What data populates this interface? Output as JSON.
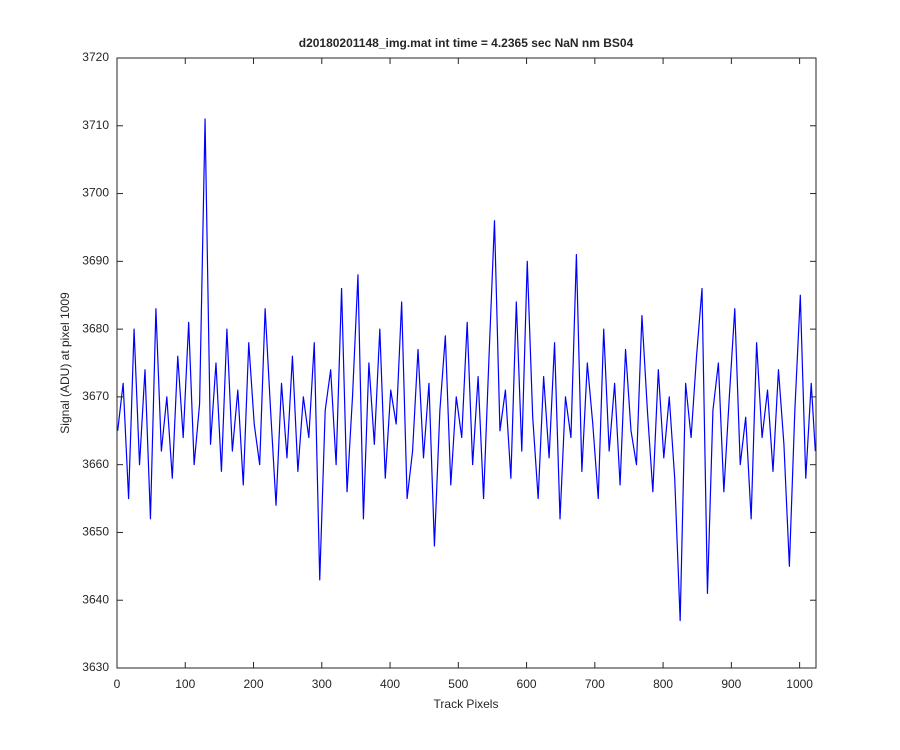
{
  "chart_data": {
    "type": "line",
    "title": "d20180201148_img.mat int time = 4.2365 sec  NaN nm BS04",
    "x_label": "Track Pixels",
    "y_label": "Signal (ADU) at pixel 1009",
    "xlim": [
      0,
      1024
    ],
    "ylim": [
      3630,
      3720
    ],
    "xticks": [
      0,
      100,
      200,
      300,
      400,
      500,
      600,
      700,
      800,
      900,
      1000
    ],
    "yticks": [
      3630,
      3640,
      3650,
      3660,
      3670,
      3680,
      3690,
      3700,
      3710,
      3720
    ],
    "grid": false,
    "series": [
      {
        "color": "#0000ff",
        "x": [
          1,
          9,
          17,
          25,
          33,
          41,
          49,
          57,
          65,
          73,
          81,
          89,
          97,
          105,
          113,
          121,
          129,
          137,
          145,
          153,
          161,
          169,
          177,
          185,
          193,
          201,
          209,
          217,
          225,
          233,
          241,
          249,
          257,
          265,
          273,
          281,
          289,
          297,
          305,
          313,
          321,
          329,
          337,
          345,
          353,
          361,
          369,
          377,
          385,
          393,
          401,
          409,
          417,
          425,
          433,
          441,
          449,
          457,
          465,
          473,
          481,
          489,
          497,
          505,
          513,
          521,
          529,
          537,
          545,
          553,
          561,
          569,
          577,
          585,
          593,
          601,
          609,
          617,
          625,
          633,
          641,
          649,
          657,
          665,
          673,
          681,
          689,
          697,
          705,
          713,
          721,
          729,
          737,
          745,
          753,
          761,
          769,
          777,
          785,
          793,
          801,
          809,
          817,
          825,
          833,
          841,
          849,
          857,
          865,
          873,
          881,
          889,
          897,
          905,
          913,
          921,
          929,
          937,
          945,
          953,
          961,
          969,
          977,
          985,
          993,
          1001,
          1009,
          1017,
          1023
        ],
        "values": [
          3665,
          3672,
          3655,
          3680,
          3660,
          3674,
          3652,
          3683,
          3662,
          3670,
          3658,
          3676,
          3664,
          3681,
          3660,
          3669,
          3711,
          3663,
          3675,
          3659,
          3680,
          3662,
          3671,
          3657,
          3678,
          3666,
          3660,
          3683,
          3668,
          3654,
          3672,
          3661,
          3676,
          3659,
          3670,
          3664,
          3678,
          3643,
          3668,
          3674,
          3660,
          3686,
          3656,
          3670,
          3688,
          3652,
          3675,
          3663,
          3680,
          3658,
          3671,
          3666,
          3684,
          3655,
          3662,
          3677,
          3661,
          3672,
          3648,
          3668,
          3679,
          3657,
          3670,
          3664,
          3681,
          3660,
          3673,
          3655,
          3676,
          3696,
          3665,
          3671,
          3658,
          3684,
          3662,
          3690,
          3667,
          3655,
          3673,
          3661,
          3678,
          3652,
          3670,
          3664,
          3691,
          3659,
          3675,
          3666,
          3655,
          3680,
          3662,
          3672,
          3657,
          3677,
          3665,
          3660,
          3682,
          3668,
          3656,
          3674,
          3661,
          3670,
          3658,
          3637,
          3672,
          3664,
          3676,
          3686,
          3641,
          3668,
          3675,
          3656,
          3670,
          3683,
          3660,
          3667,
          3652,
          3678,
          3664,
          3671,
          3659,
          3674,
          3663,
          3645,
          3668,
          3685,
          3658,
          3672,
          3662
        ]
      }
    ]
  }
}
